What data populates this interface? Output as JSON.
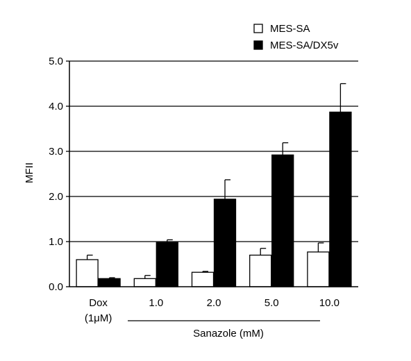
{
  "chart_data": {
    "type": "bar",
    "title": "",
    "ylabel": "MFII",
    "xlabel": "",
    "group_label": "Sanazole (mM)",
    "categories": [
      "Dox",
      "1.0",
      "2.0",
      "5.0",
      "10.0"
    ],
    "category_sublabels": [
      "(1μM)",
      "",
      "",
      "",
      ""
    ],
    "ylim": [
      0,
      5
    ],
    "yticks": [
      0,
      1,
      2,
      3,
      4,
      5
    ],
    "ytick_labels": [
      "0.0",
      "1.0",
      "2.0",
      "3.0",
      "4.0",
      "5.0"
    ],
    "grid": "horizontal",
    "legend_position": "top-right",
    "series": [
      {
        "name": "MES-SA",
        "fill": "#ffffff",
        "values": [
          0.6,
          0.18,
          0.32,
          0.7,
          0.77
        ],
        "errors": [
          0.1,
          0.07,
          0.02,
          0.15,
          0.2
        ]
      },
      {
        "name": "MES-SA/DX5v",
        "fill": "#000000",
        "values": [
          0.18,
          0.98,
          1.94,
          2.92,
          3.87
        ],
        "errors": [
          0.02,
          0.06,
          0.43,
          0.27,
          0.63
        ]
      }
    ]
  }
}
